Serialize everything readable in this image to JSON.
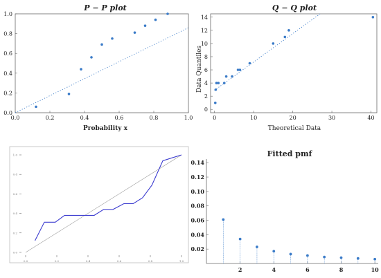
{
  "colors": {
    "points": "#3a7bc8",
    "line": "#3d3dd0",
    "ref": "#999999",
    "frame": "#666666"
  },
  "chart_data": [
    {
      "type": "scatter",
      "title": "P − P plot",
      "xlabel": "Probability x",
      "ylabel": "",
      "xlim": [
        0,
        1.0
      ],
      "ylim": [
        0,
        1.0
      ],
      "xticks": [
        "0.0",
        "0.2",
        "0.4",
        "0.6",
        "0.8",
        "1.0"
      ],
      "yticks": [
        "0.0",
        "0.2",
        "0.4",
        "0.6",
        "0.8",
        "1.0"
      ],
      "reference_line": "dotted",
      "points": [
        [
          0.12,
          0.06
        ],
        [
          0.31,
          0.19
        ],
        [
          0.38,
          0.44
        ],
        [
          0.44,
          0.56
        ],
        [
          0.5,
          0.69
        ],
        [
          0.56,
          0.75
        ],
        [
          0.69,
          0.81
        ],
        [
          0.75,
          0.88
        ],
        [
          0.81,
          0.94
        ],
        [
          0.88,
          1.0
        ]
      ]
    },
    {
      "type": "scatter",
      "title": "Q − Q plot",
      "xlabel": "Theoretical Data",
      "ylabel": "Data Quantiles",
      "xlim": [
        0,
        40
      ],
      "ylim": [
        0,
        14
      ],
      "xticks": [
        "0",
        "10",
        "20",
        "30",
        "40"
      ],
      "yticks": [
        "0",
        "2",
        "4",
        "6",
        "8",
        "10",
        "12",
        "14"
      ],
      "reference_line": "dotted",
      "points": [
        [
          0.2,
          1
        ],
        [
          0.3,
          3
        ],
        [
          0.5,
          4
        ],
        [
          1,
          4
        ],
        [
          2.5,
          4
        ],
        [
          3,
          5
        ],
        [
          4.5,
          5
        ],
        [
          6,
          6
        ],
        [
          6.5,
          6
        ],
        [
          9,
          7
        ],
        [
          15,
          10
        ],
        [
          18,
          11
        ],
        [
          19,
          12
        ],
        [
          40.5,
          14
        ]
      ]
    },
    {
      "type": "line",
      "title": "",
      "xlabel": "",
      "ylabel": "",
      "xlim": [
        0,
        1.0
      ],
      "ylim": [
        0,
        1.0
      ],
      "xticks": [
        "0.0",
        "0.2",
        "0.4",
        "0.6",
        "0.8",
        "1.0"
      ],
      "yticks": [
        "0.0",
        "0.2",
        "0.4",
        "0.6",
        "0.8",
        "1.0"
      ],
      "reference_line": "diagonal",
      "series": [
        {
          "x": [
            0.06,
            0.12,
            0.19,
            0.25,
            0.31,
            0.38,
            0.44,
            0.5,
            0.56,
            0.63,
            0.69,
            0.75,
            0.81,
            0.88,
            0.94,
            1.0
          ],
          "y": [
            0.12,
            0.31,
            0.31,
            0.38,
            0.38,
            0.38,
            0.38,
            0.44,
            0.44,
            0.5,
            0.5,
            0.56,
            0.69,
            0.94,
            0.97,
            1.0
          ]
        }
      ]
    },
    {
      "type": "bar",
      "title": "Fitted pmf",
      "xlabel": "",
      "ylabel": "",
      "xlim": [
        0,
        10
      ],
      "ylim": [
        0,
        0.14
      ],
      "xticks": [
        "2",
        "4",
        "6",
        "8",
        "10"
      ],
      "yticks": [
        "0.02",
        "0.04",
        "0.06",
        "0.08",
        "0.10",
        "0.12",
        "0.14"
      ],
      "categories": [
        1,
        2,
        3,
        4,
        5,
        6,
        7,
        8,
        9,
        10
      ],
      "values": [
        0.061,
        0.034,
        0.023,
        0.017,
        0.013,
        0.011,
        0.009,
        0.008,
        0.007,
        0.006
      ]
    }
  ]
}
